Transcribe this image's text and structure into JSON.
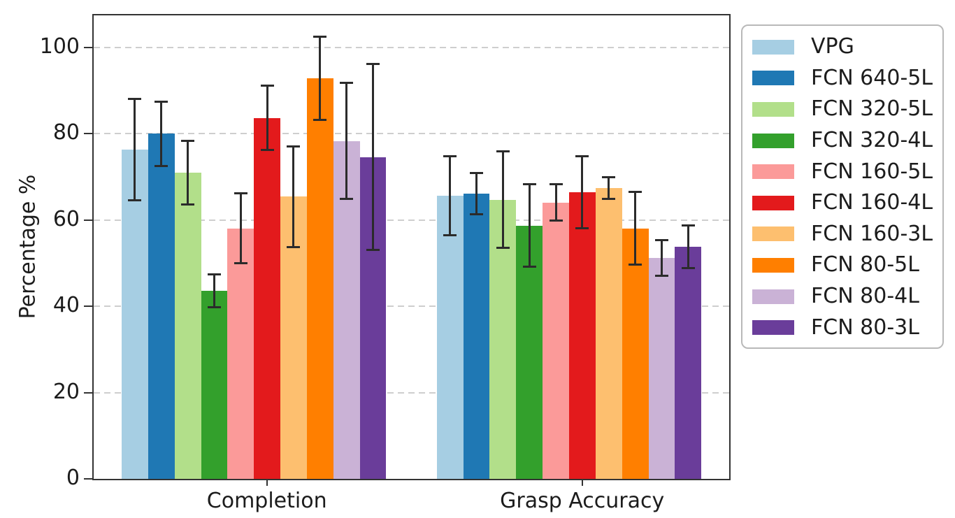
{
  "chart_data": {
    "type": "bar",
    "title": "",
    "ylabel": "Percentage %",
    "xlabel": "",
    "categories": [
      "Completion",
      "Grasp Accuracy"
    ],
    "yticks": [
      0,
      20,
      40,
      60,
      80,
      100
    ],
    "ylim": [
      0,
      107.5
    ],
    "grid": "horizontal dashed",
    "legend_position": "outside upper right",
    "error_bars": true,
    "error_bar_color": "#2b2b2b",
    "series": [
      {
        "name": "VPG",
        "color": "#a6cee3",
        "values": [
          76.4,
          65.7
        ],
        "errors": [
          12.0,
          9.4
        ]
      },
      {
        "name": "FCN 640-5L",
        "color": "#1f78b4",
        "values": [
          80.0,
          66.1
        ],
        "errors": [
          7.7,
          5.0
        ]
      },
      {
        "name": "FCN 320-5L",
        "color": "#b2df8a",
        "values": [
          71.0,
          64.7
        ],
        "errors": [
          7.6,
          11.4
        ]
      },
      {
        "name": "FCN 320-4L",
        "color": "#33a02c",
        "values": [
          43.6,
          58.7
        ],
        "errors": [
          4.1,
          9.8
        ]
      },
      {
        "name": "FCN 160-5L",
        "color": "#fb9a99",
        "values": [
          58.1,
          64.1
        ],
        "errors": [
          8.4,
          4.5
        ]
      },
      {
        "name": "FCN 160-4L",
        "color": "#e31a1c",
        "values": [
          83.7,
          66.4
        ],
        "errors": [
          7.7,
          8.6
        ]
      },
      {
        "name": "FCN 160-3L",
        "color": "#fdbf6f",
        "values": [
          65.4,
          67.4
        ],
        "errors": [
          11.9,
          2.8
        ]
      },
      {
        "name": "FCN 80-5L",
        "color": "#ff7f00",
        "values": [
          92.9,
          58.1
        ],
        "errors": [
          9.9,
          8.7
        ]
      },
      {
        "name": "FCN 80-4L",
        "color": "#cab2d6",
        "values": [
          78.3,
          51.2
        ],
        "errors": [
          13.7,
          4.4
        ]
      },
      {
        "name": "FCN 80-3L",
        "color": "#6a3d9a",
        "values": [
          74.6,
          53.8
        ],
        "errors": [
          21.8,
          5.2
        ]
      }
    ]
  }
}
